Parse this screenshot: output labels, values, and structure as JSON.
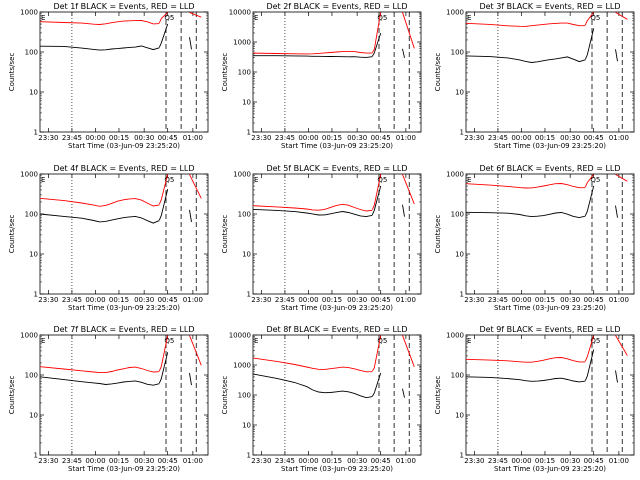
{
  "figure": {
    "xlabel": "Start Time (03-Jun-09 23:25:20)",
    "ylabel": "Counts/sec",
    "xticks": [
      "23:30",
      "23:45",
      "00:00",
      "00:15",
      "00:30",
      "00:45",
      "01:00"
    ],
    "yticks": [
      "1",
      "10",
      "100",
      "1000",
      "10000"
    ],
    "flag_text_top": "E",
    "flag_text_peak": "Q5"
  },
  "colors": {
    "events": "#000000",
    "lld": "#ff0000",
    "axes": "#000000"
  },
  "chart_data": [
    {
      "type": "line",
      "title": "Det 1f BLACK = Events, RED = LLD",
      "ylim": [
        1,
        1000
      ],
      "yticks": [
        "1",
        "10",
        "100",
        "1000"
      ],
      "xlim": [
        0,
        100
      ],
      "series": [
        {
          "name": "Events",
          "color": "#000000",
          "x": [
            0,
            20,
            35,
            45,
            50,
            55,
            60,
            65,
            70,
            75,
            80,
            85,
            90,
            95,
            100
          ],
          "values": [
            140,
            135,
            120,
            110,
            105,
            108,
            115,
            120,
            128,
            135,
            140,
            150,
            135,
            120,
            130
          ]
        },
        {
          "name": "LLD",
          "color": "#ff0000",
          "x": [
            0,
            20,
            35,
            45,
            50,
            55,
            60,
            65,
            70,
            75,
            80,
            85,
            90,
            95,
            100
          ],
          "values": [
            600,
            580,
            560,
            520,
            500,
            510,
            530,
            545,
            560,
            570,
            580,
            590,
            560,
            510,
            530
          ]
        }
      ]
    },
    {
      "type": "line",
      "title": "Det 2f BLACK = Events, RED = LLD",
      "ylim": [
        1,
        10000
      ],
      "yticks": [
        "1",
        "10",
        "100",
        "1000",
        "10000"
      ],
      "xlim": [
        0,
        100
      ],
      "series": [
        {
          "name": "Events",
          "color": "#000000",
          "x": [
            0,
            20,
            35,
            45,
            50,
            55,
            60,
            65,
            70,
            75,
            80,
            85,
            90,
            95,
            100
          ],
          "values": [
            350,
            340,
            330,
            320,
            315,
            318,
            320,
            325,
            330,
            335,
            340,
            345,
            330,
            320,
            330
          ]
        },
        {
          "name": "LLD",
          "color": "#ff0000",
          "x": [
            0,
            20,
            35,
            45,
            50,
            55,
            60,
            65,
            70,
            75,
            80,
            85,
            90,
            95,
            100
          ],
          "values": [
            450,
            440,
            430,
            420,
            415,
            420,
            425,
            430,
            440,
            450,
            455,
            460,
            440,
            430,
            440
          ]
        }
      ]
    },
    {
      "type": "line",
      "title": "Det 3f BLACK = Events, RED = LLD",
      "ylim": [
        1,
        1000
      ],
      "yticks": [
        "1",
        "10",
        "100",
        "1000"
      ],
      "xlim": [
        0,
        100
      ],
      "series": [
        {
          "name": "Events",
          "color": "#000000",
          "x": [
            0,
            20,
            35,
            45,
            50,
            55,
            60,
            65,
            70,
            75,
            80,
            85,
            90,
            95,
            100
          ],
          "values": [
            80,
            75,
            68,
            60,
            55,
            52,
            55,
            60,
            65,
            70,
            75,
            80,
            70,
            60,
            65
          ]
        },
        {
          "name": "LLD",
          "color": "#ff0000",
          "x": [
            0,
            20,
            35,
            45,
            50,
            55,
            60,
            65,
            70,
            75,
            80,
            85,
            90,
            95,
            100
          ],
          "values": [
            550,
            520,
            480,
            460,
            450,
            455,
            460,
            470,
            480,
            490,
            500,
            510,
            480,
            460,
            470
          ]
        }
      ]
    },
    {
      "type": "line",
      "title": "Det 4f BLACK = Events, RED = LLD",
      "ylim": [
        1,
        1000
      ],
      "yticks": [
        "1",
        "10",
        "100",
        "1000"
      ],
      "xlim": [
        0,
        100
      ],
      "series": [
        {
          "name": "Events",
          "color": "#000000",
          "x": [
            0,
            20,
            35,
            45,
            50,
            55,
            60,
            65,
            70,
            75,
            80,
            85,
            90,
            95,
            100
          ],
          "values": [
            100,
            85,
            75,
            65,
            60,
            62,
            68,
            75,
            82,
            88,
            92,
            85,
            72,
            62,
            70
          ]
        },
        {
          "name": "LLD",
          "color": "#ff0000",
          "x": [
            0,
            20,
            35,
            45,
            50,
            55,
            60,
            65,
            70,
            75,
            80,
            85,
            90,
            95,
            100
          ],
          "values": [
            260,
            230,
            200,
            175,
            160,
            165,
            180,
            200,
            215,
            225,
            230,
            215,
            185,
            160,
            175
          ]
        }
      ]
    },
    {
      "type": "line",
      "title": "Det 5f BLACK = Events, RED = LLD",
      "ylim": [
        1,
        1000
      ],
      "yticks": [
        "1",
        "10",
        "100",
        "1000"
      ],
      "xlim": [
        0,
        100
      ],
      "series": [
        {
          "name": "Events",
          "color": "#000000",
          "x": [
            0,
            20,
            35,
            45,
            50,
            55,
            60,
            65,
            70,
            75,
            80,
            85,
            90,
            95,
            100
          ],
          "values": [
            130,
            120,
            110,
            100,
            95,
            90,
            92,
            100,
            110,
            120,
            115,
            105,
            95,
            90,
            95
          ]
        },
        {
          "name": "LLD",
          "color": "#ff0000",
          "x": [
            0,
            20,
            35,
            45,
            50,
            55,
            60,
            65,
            70,
            75,
            80,
            85,
            90,
            95,
            100
          ],
          "values": [
            170,
            160,
            150,
            140,
            130,
            125,
            128,
            140,
            155,
            165,
            158,
            140,
            128,
            120,
            128
          ]
        }
      ]
    },
    {
      "type": "line",
      "title": "Det 6f BLACK = Events, RED = LLD",
      "ylim": [
        1,
        1000
      ],
      "yticks": [
        "1",
        "10",
        "100",
        "1000"
      ],
      "xlim": [
        0,
        100
      ],
      "series": [
        {
          "name": "Events",
          "color": "#000000",
          "x": [
            0,
            20,
            35,
            45,
            50,
            55,
            60,
            65,
            70,
            75,
            80,
            85,
            90,
            95,
            100
          ],
          "values": [
            110,
            105,
            100,
            92,
            85,
            82,
            85,
            90,
            100,
            110,
            115,
            105,
            92,
            85,
            90
          ]
        },
        {
          "name": "LLD",
          "color": "#ff0000",
          "x": [
            0,
            20,
            35,
            45,
            50,
            55,
            60,
            65,
            70,
            75,
            80,
            85,
            90,
            95,
            100
          ],
          "values": [
            600,
            560,
            520,
            480,
            460,
            450,
            460,
            480,
            510,
            540,
            550,
            520,
            480,
            460,
            470
          ]
        }
      ]
    },
    {
      "type": "line",
      "title": "Det 7f BLACK = Events, RED = LLD",
      "ylim": [
        1,
        1000
      ],
      "yticks": [
        "1",
        "10",
        "100",
        "1000"
      ],
      "xlim": [
        0,
        100
      ],
      "series": [
        {
          "name": "Events",
          "color": "#000000",
          "x": [
            0,
            20,
            35,
            45,
            50,
            55,
            60,
            65,
            70,
            75,
            80,
            85,
            90,
            95,
            100
          ],
          "values": [
            90,
            75,
            65,
            60,
            58,
            55,
            58,
            62,
            68,
            72,
            75,
            70,
            62,
            58,
            62
          ]
        },
        {
          "name": "LLD",
          "color": "#ff0000",
          "x": [
            0,
            20,
            35,
            45,
            50,
            55,
            60,
            65,
            70,
            75,
            80,
            85,
            90,
            95,
            100
          ],
          "values": [
            170,
            150,
            135,
            125,
            118,
            115,
            120,
            128,
            135,
            145,
            150,
            140,
            128,
            120,
            125
          ]
        }
      ]
    },
    {
      "type": "line",
      "title": "Det 8f BLACK = Events, RED = LLD",
      "ylim": [
        1,
        10000
      ],
      "yticks": [
        "1",
        "10",
        "100",
        "1000",
        "10000"
      ],
      "xlim": [
        0,
        100
      ],
      "series": [
        {
          "name": "Events",
          "color": "#000000",
          "x": [
            0,
            20,
            35,
            45,
            50,
            55,
            60,
            65,
            70,
            75,
            80,
            85,
            90,
            95,
            100
          ],
          "values": [
            500,
            350,
            250,
            180,
            140,
            120,
            115,
            120,
            130,
            140,
            135,
            120,
            100,
            85,
            90
          ]
        },
        {
          "name": "LLD",
          "color": "#ff0000",
          "x": [
            0,
            20,
            35,
            45,
            50,
            55,
            60,
            65,
            70,
            75,
            80,
            85,
            90,
            95,
            100
          ],
          "values": [
            1800,
            1400,
            1100,
            900,
            800,
            720,
            700,
            720,
            760,
            800,
            780,
            720,
            650,
            600,
            620
          ]
        }
      ]
    },
    {
      "type": "line",
      "title": "Det 9f BLACK = Events, RED = LLD",
      "ylim": [
        1,
        1000
      ],
      "yticks": [
        "1",
        "10",
        "100",
        "1000"
      ],
      "xlim": [
        0,
        100
      ],
      "series": [
        {
          "name": "Events",
          "color": "#000000",
          "x": [
            0,
            20,
            35,
            45,
            50,
            55,
            60,
            65,
            70,
            75,
            80,
            85,
            90,
            95,
            100
          ],
          "values": [
            90,
            85,
            78,
            72,
            68,
            66,
            68,
            72,
            78,
            85,
            88,
            82,
            75,
            70,
            72
          ]
        },
        {
          "name": "LLD",
          "color": "#ff0000",
          "x": [
            0,
            20,
            35,
            45,
            50,
            55,
            60,
            65,
            70,
            75,
            80,
            85,
            90,
            95,
            100
          ],
          "values": [
            260,
            250,
            240,
            225,
            215,
            210,
            215,
            225,
            240,
            255,
            260,
            245,
            225,
            215,
            220
          ]
        }
      ]
    }
  ]
}
